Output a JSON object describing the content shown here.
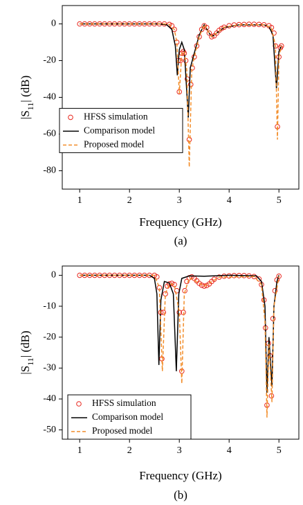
{
  "chart_data": [
    {
      "type": "line",
      "xlabel": "Frequency (GHz)",
      "ylabel": [
        "|S",
        "11",
        "| (dB)"
      ],
      "caption": "(a)",
      "xlim": [
        0.65,
        5.4
      ],
      "ylim": [
        -90,
        10
      ],
      "xticks": [
        1,
        2,
        3,
        4,
        5
      ],
      "yticks": [
        0,
        -20,
        -40,
        -60,
        -80
      ],
      "legend": "center left",
      "series": [
        {
          "name": "HFSS simulation",
          "color": "#e8251c",
          "style": "markers",
          "x": [
            1.0,
            1.1,
            1.2,
            1.3,
            1.4,
            1.5,
            1.6,
            1.7,
            1.8,
            1.9,
            2.0,
            2.1,
            2.2,
            2.3,
            2.4,
            2.5,
            2.6,
            2.7,
            2.8,
            2.85,
            2.9,
            2.95,
            2.98,
            3.0,
            3.02,
            3.05,
            3.08,
            3.1,
            3.13,
            3.16,
            3.2,
            3.23,
            3.26,
            3.3,
            3.35,
            3.4,
            3.45,
            3.5,
            3.55,
            3.6,
            3.65,
            3.7,
            3.75,
            3.8,
            3.85,
            3.9,
            4.0,
            4.1,
            4.2,
            4.3,
            4.4,
            4.5,
            4.6,
            4.7,
            4.8,
            4.85,
            4.9,
            4.93,
            4.97,
            5.0,
            5.03,
            5.05
          ],
          "values": [
            0,
            0,
            0,
            0,
            0,
            0,
            0,
            0,
            0,
            0,
            0,
            0,
            0,
            0,
            0,
            0,
            0,
            0,
            -0.3,
            -1,
            -3,
            -10,
            -20,
            -37,
            -20,
            -16,
            -15,
            -16,
            -20,
            -30,
            -63,
            -33,
            -24,
            -18,
            -12,
            -7,
            -3,
            -1,
            -2,
            -5,
            -7,
            -6.5,
            -5,
            -3.5,
            -2.5,
            -1.8,
            -1,
            -0.6,
            -0.4,
            -0.3,
            -0.2,
            -0.2,
            -0.3,
            -0.5,
            -1,
            -2,
            -5,
            -12,
            -56,
            -18,
            -13,
            -12
          ]
        },
        {
          "name": "Comparison model",
          "color": "#000000",
          "style": "solid",
          "x": [
            1,
            2.6,
            2.75,
            2.85,
            2.92,
            2.96,
            3.0,
            3.05,
            3.1,
            3.18,
            3.22,
            3.3,
            3.4,
            3.5,
            3.6,
            3.65,
            3.75,
            3.9,
            4.2,
            4.7,
            4.8,
            4.88,
            4.95,
            5.0,
            5.05
          ],
          "values": [
            0,
            0,
            -0.5,
            -3,
            -12,
            -28,
            -14,
            -10,
            -14,
            -51,
            -24,
            -16,
            -6,
            -0.5,
            -5,
            -7,
            -5,
            -2,
            -0.5,
            -0.5,
            -1.5,
            -6,
            -35,
            -15,
            -12
          ]
        },
        {
          "name": "Proposed model",
          "color": "#f28c28",
          "style": "dashed",
          "x": [
            1,
            2.7,
            2.8,
            2.9,
            2.95,
            3.0,
            3.05,
            3.1,
            3.15,
            3.2,
            3.25,
            3.3,
            3.4,
            3.5,
            3.6,
            3.65,
            3.75,
            3.9,
            4.2,
            4.7,
            4.85,
            4.93,
            4.97,
            5.0,
            5.05
          ],
          "values": [
            0,
            0,
            -0.3,
            -3,
            -10,
            -38,
            -16,
            -15,
            -25,
            -78,
            -25,
            -18,
            -7,
            -0.5,
            -5,
            -7,
            -5,
            -1.8,
            -0.4,
            -0.5,
            -2,
            -12,
            -63,
            -18,
            -12
          ]
        }
      ]
    },
    {
      "type": "line",
      "xlabel": "Frequency (GHz)",
      "ylabel": [
        "|S",
        "11",
        "| (dB)"
      ],
      "caption": "(b)",
      "xlim": [
        0.65,
        5.4
      ],
      "ylim": [
        -53,
        3
      ],
      "xticks": [
        1,
        2,
        3,
        4,
        5
      ],
      "yticks": [
        0,
        -10,
        -20,
        -30,
        -40,
        -50
      ],
      "legend": "lower left",
      "series": [
        {
          "name": "HFSS simulation",
          "color": "#e8251c",
          "style": "markers",
          "x": [
            1.0,
            1.1,
            1.2,
            1.3,
            1.4,
            1.5,
            1.6,
            1.7,
            1.8,
            1.9,
            2.0,
            2.1,
            2.2,
            2.3,
            2.4,
            2.5,
            2.55,
            2.6,
            2.63,
            2.65,
            2.68,
            2.72,
            2.76,
            2.8,
            2.85,
            2.9,
            2.95,
            3.0,
            3.05,
            3.08,
            3.11,
            3.15,
            3.2,
            3.25,
            3.3,
            3.35,
            3.4,
            3.45,
            3.5,
            3.55,
            3.6,
            3.65,
            3.7,
            3.8,
            3.9,
            4.0,
            4.1,
            4.2,
            4.3,
            4.4,
            4.5,
            4.6,
            4.65,
            4.7,
            4.73,
            4.76,
            4.79,
            4.82,
            4.85,
            4.88,
            4.92,
            4.96,
            5.0
          ],
          "values": [
            0,
            0,
            0,
            0,
            0,
            0,
            0,
            0,
            0,
            0,
            0,
            0,
            0,
            0,
            0,
            0,
            -0.5,
            -4,
            -12,
            -27,
            -12,
            -6,
            -3.5,
            -2.8,
            -2.6,
            -3,
            -5,
            -12,
            -31,
            -12,
            -5,
            -2,
            -0.8,
            -0.5,
            -1,
            -1.8,
            -2.6,
            -3.2,
            -3.5,
            -3.3,
            -2.8,
            -2,
            -1.3,
            -0.6,
            -0.3,
            -0.2,
            -0.1,
            -0.1,
            -0.1,
            -0.2,
            -0.4,
            -1.2,
            -3,
            -8,
            -17,
            -42,
            -22,
            -26,
            -39,
            -14,
            -5,
            -1.5,
            -0.3
          ]
        },
        {
          "name": "Comparison model",
          "color": "#000000",
          "style": "solid",
          "x": [
            1,
            2.4,
            2.5,
            2.55,
            2.59,
            2.63,
            2.7,
            2.8,
            2.88,
            2.94,
            2.99,
            3.05,
            3.2,
            3.5,
            4.0,
            4.55,
            4.65,
            4.72,
            4.76,
            4.8,
            4.86,
            4.9,
            4.96,
            5.0
          ],
          "values": [
            0,
            0,
            -1,
            -6,
            -29,
            -8,
            -2,
            -2.5,
            -6,
            -31,
            -6,
            -1,
            -0.2,
            -0.3,
            0,
            -0.2,
            -2,
            -10,
            -38,
            -20,
            -36,
            -10,
            -2,
            0
          ]
        },
        {
          "name": "Proposed model",
          "color": "#f28c28",
          "style": "dashed",
          "x": [
            1,
            2.5,
            2.6,
            2.66,
            2.72,
            2.8,
            2.9,
            3.0,
            3.05,
            3.1,
            3.2,
            3.5,
            3.8,
            4.5,
            4.65,
            4.72,
            4.76,
            4.8,
            4.86,
            4.9,
            5.0
          ],
          "values": [
            0,
            0,
            -4,
            -31,
            -6,
            -2.8,
            -3,
            -12,
            -35,
            -6,
            -0.8,
            -3.5,
            -0.6,
            -0.4,
            -3,
            -15,
            -46,
            -22,
            -41,
            -10,
            -0.3
          ]
        }
      ]
    }
  ]
}
